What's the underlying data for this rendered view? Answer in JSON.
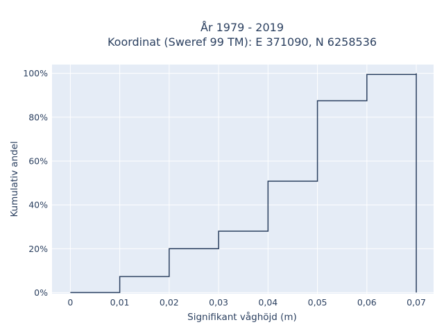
{
  "chart_data": {
    "type": "line",
    "line_shape": "step",
    "title_line1": "År 1979 - 2019",
    "title_line2": "Koordinat (Sweref 99 TM): E 371090, N 6258536",
    "xlabel": "Signifikant våghöjd (m)",
    "ylabel": "Kumulativ andel",
    "x": [
      0,
      0.01,
      0.02,
      0.03,
      0.04,
      0.05,
      0.06,
      0.07,
      0.07
    ],
    "y": [
      0.0,
      0.073,
      0.2,
      0.28,
      0.508,
      0.875,
      0.995,
      1.0,
      0.0
    ],
    "xlim": [
      -0.0037,
      0.0735
    ],
    "ylim": [
      -0.005,
      1.04
    ],
    "x_ticks": [
      0,
      0.01,
      0.02,
      0.03,
      0.04,
      0.05,
      0.06,
      0.07
    ],
    "x_tick_labels": [
      "0",
      "0,01",
      "0,02",
      "0,03",
      "0,04",
      "0,05",
      "0,06",
      "0,07"
    ],
    "y_ticks": [
      0,
      0.2,
      0.4,
      0.6,
      0.8,
      1.0
    ],
    "y_tick_labels": [
      "0%",
      "20%",
      "40%",
      "60%",
      "80%",
      "100%"
    ],
    "grid": true,
    "colors": {
      "plot_bg": "#e5ecf6",
      "grid": "#ffffff",
      "line": "#2a3f5f",
      "text": "#2a3f5f"
    }
  }
}
